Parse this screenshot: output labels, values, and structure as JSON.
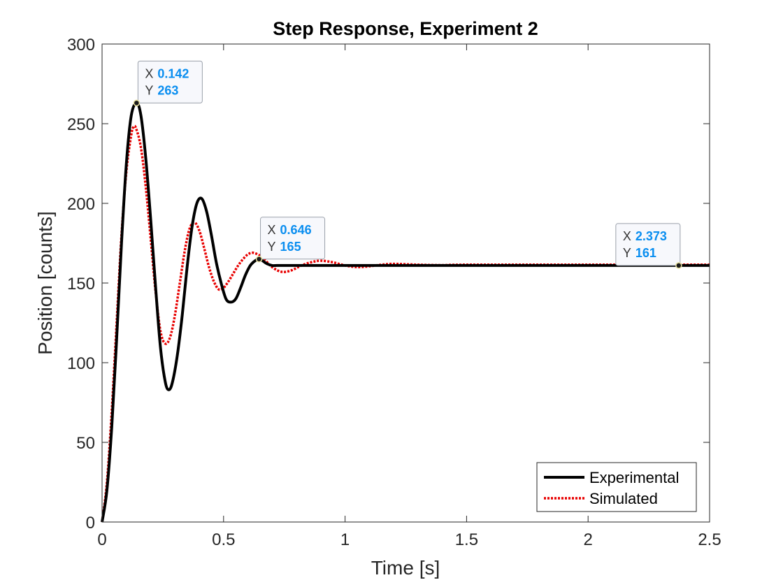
{
  "chart_data": {
    "type": "line",
    "title": "Step Response, Experiment 2",
    "xlabel": "Time [s]",
    "ylabel": "Position [counts]",
    "xlim": [
      0,
      2.5
    ],
    "ylim": [
      0,
      300
    ],
    "xticks": [
      0,
      0.5,
      1,
      1.5,
      2,
      2.5
    ],
    "xtick_labels": [
      "0",
      "0.5",
      "1",
      "1.5",
      "2",
      "2.5"
    ],
    "yticks": [
      0,
      50,
      100,
      150,
      200,
      250,
      300
    ],
    "ytick_labels": [
      "0",
      "50",
      "100",
      "150",
      "200",
      "250",
      "300"
    ],
    "grid": false,
    "legend_position": "bottom-right",
    "series": [
      {
        "name": "Experimental",
        "color": "#000000",
        "style": "solid",
        "x": [
          0,
          0.02,
          0.04,
          0.06,
          0.08,
          0.1,
          0.12,
          0.142,
          0.16,
          0.18,
          0.2,
          0.22,
          0.24,
          0.26,
          0.275,
          0.29,
          0.31,
          0.33,
          0.35,
          0.37,
          0.39,
          0.41,
          0.43,
          0.45,
          0.47,
          0.49,
          0.51,
          0.53,
          0.55,
          0.57,
          0.59,
          0.61,
          0.63,
          0.646,
          0.66,
          0.68,
          0.7,
          0.72,
          0.75,
          0.8,
          0.9,
          1.0,
          1.2,
          1.5,
          2.0,
          2.373,
          2.5
        ],
        "y": [
          0,
          20,
          60,
          115,
          175,
          225,
          255,
          263,
          255,
          228,
          190,
          148,
          110,
          88,
          83,
          88,
          105,
          130,
          160,
          185,
          200,
          203,
          195,
          180,
          163,
          150,
          140,
          138,
          140,
          147,
          155,
          161,
          164,
          165,
          164,
          162,
          161,
          161,
          161,
          161,
          161,
          161,
          161,
          161,
          161,
          161,
          161
        ]
      },
      {
        "name": "Simulated",
        "color": "#e80000",
        "style": "dotted",
        "x": [
          0,
          0.02,
          0.04,
          0.06,
          0.08,
          0.1,
          0.12,
          0.13,
          0.14,
          0.16,
          0.18,
          0.2,
          0.22,
          0.24,
          0.26,
          0.28,
          0.3,
          0.32,
          0.34,
          0.36,
          0.38,
          0.4,
          0.42,
          0.44,
          0.46,
          0.48,
          0.5,
          0.52,
          0.54,
          0.56,
          0.58,
          0.6,
          0.62,
          0.64,
          0.66,
          0.7,
          0.74,
          0.78,
          0.82,
          0.86,
          0.9,
          0.95,
          1.0,
          1.05,
          1.1,
          1.15,
          1.2,
          1.3,
          1.4,
          1.5,
          2.0,
          2.5
        ],
        "y": [
          0,
          25,
          70,
          125,
          180,
          220,
          243,
          248,
          247,
          235,
          210,
          178,
          145,
          120,
          112,
          116,
          130,
          150,
          170,
          184,
          188,
          183,
          172,
          160,
          151,
          146,
          147,
          151,
          156,
          161,
          165,
          168,
          169,
          168,
          166,
          160,
          157,
          158,
          161,
          163,
          164,
          163,
          161,
          160,
          160.5,
          161.5,
          162,
          161.5,
          161.2,
          161.5,
          161.5,
          161.5
        ]
      }
    ],
    "datatips": [
      {
        "x_label": "X",
        "y_label": "Y",
        "x": 0.142,
        "y": 263,
        "x_text": "0.142",
        "y_text": "263"
      },
      {
        "x_label": "X",
        "y_label": "Y",
        "x": 0.646,
        "y": 165,
        "x_text": "0.646",
        "y_text": "165"
      },
      {
        "x_label": "X",
        "y_label": "Y",
        "x": 2.373,
        "y": 161,
        "x_text": "2.373",
        "y_text": "161"
      }
    ]
  }
}
